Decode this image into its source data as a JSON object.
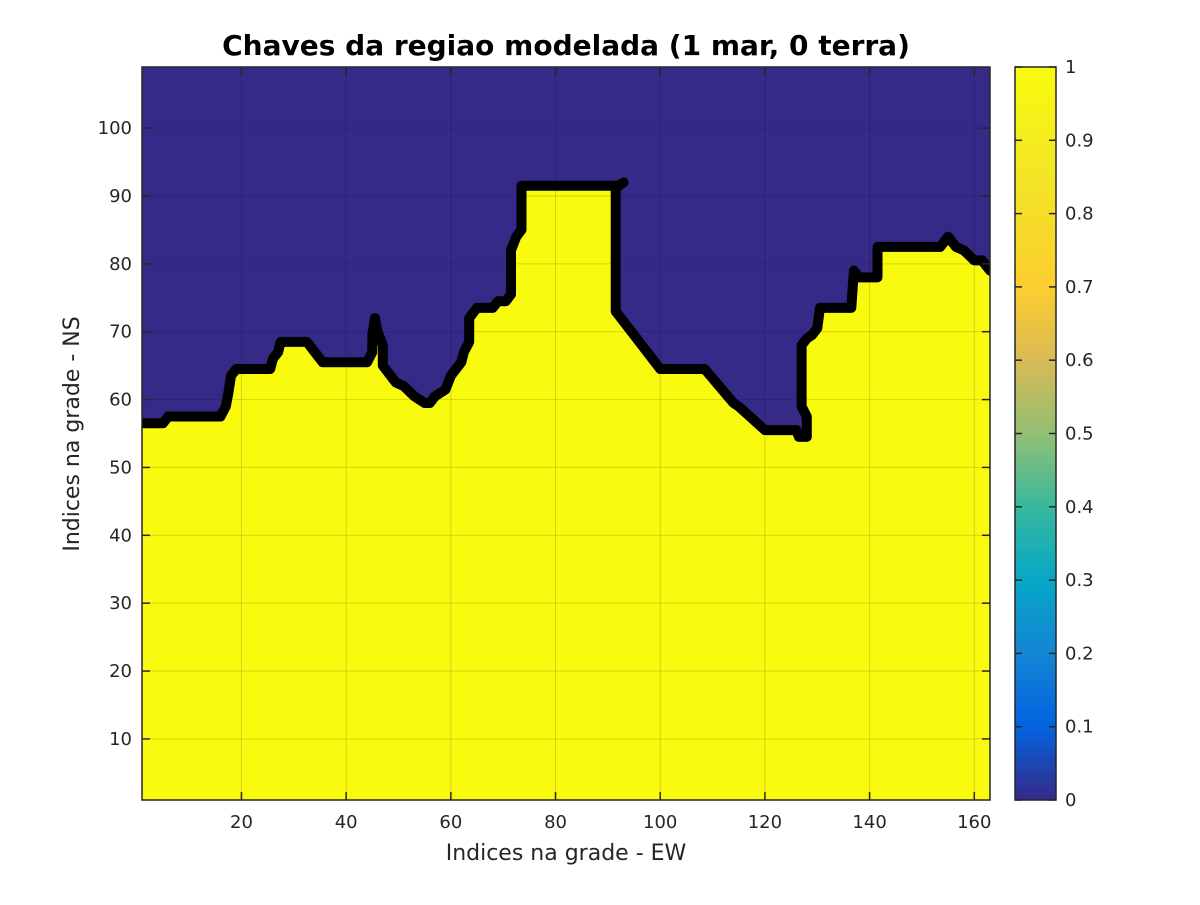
{
  "chart_data": {
    "type": "heatmap",
    "title": "Chaves da regiao modelada (1 mar, 0 terra)",
    "xlabel": "Indices na grade - EW",
    "ylabel": "Indices na grade - NS",
    "xlim": [
      1,
      163
    ],
    "ylim": [
      1,
      109
    ],
    "xticks": [
      20,
      40,
      60,
      80,
      100,
      120,
      140,
      160
    ],
    "yticks": [
      10,
      20,
      30,
      40,
      50,
      60,
      70,
      80,
      90,
      100
    ],
    "grid": true,
    "values": {
      "below_boundary": 1,
      "above_boundary": 0
    },
    "colors": {
      "low": "#352A87",
      "high": "#F9FB0E",
      "boundary": "#000000"
    },
    "colormap": "parula",
    "colorbar": {
      "range": [
        0,
        1
      ],
      "ticks": [
        0,
        0.1,
        0.2,
        0.3,
        0.4,
        0.5,
        0.6,
        0.7,
        0.8,
        0.9,
        1
      ],
      "tick_labels": [
        "0",
        "0.1",
        "0.2",
        "0.3",
        "0.4",
        "0.5",
        "0.6",
        "0.7",
        "0.8",
        "0.9",
        "1"
      ]
    },
    "boundary": [
      [
        1,
        56.5
      ],
      [
        5,
        56.5
      ],
      [
        6,
        57.5
      ],
      [
        16,
        57.5
      ],
      [
        17,
        59
      ],
      [
        17.5,
        61
      ],
      [
        18,
        63.5
      ],
      [
        19,
        64.5
      ],
      [
        25.5,
        64.5
      ],
      [
        26,
        66
      ],
      [
        27,
        67
      ],
      [
        27.5,
        68.5
      ],
      [
        32.5,
        68.5
      ],
      [
        35.5,
        65.5
      ],
      [
        44,
        65.5
      ],
      [
        45,
        67
      ],
      [
        45,
        69.5
      ],
      [
        45.5,
        72
      ],
      [
        46,
        70
      ],
      [
        47,
        68
      ],
      [
        47,
        65
      ],
      [
        48,
        64
      ],
      [
        49.5,
        62.5
      ],
      [
        51,
        62
      ],
      [
        53,
        60.5
      ],
      [
        55,
        59.5
      ],
      [
        56,
        59.5
      ],
      [
        57,
        60.5
      ],
      [
        59,
        61.5
      ],
      [
        60,
        63.5
      ],
      [
        62,
        65.5
      ],
      [
        62.5,
        67
      ],
      [
        63.5,
        68.5
      ],
      [
        63.5,
        72
      ],
      [
        65,
        73.5
      ],
      [
        68,
        73.5
      ],
      [
        69,
        74.5
      ],
      [
        70.5,
        74.5
      ],
      [
        71.5,
        75.5
      ],
      [
        71.5,
        82
      ],
      [
        72.5,
        84
      ],
      [
        73.5,
        85
      ],
      [
        73.5,
        91.5
      ],
      [
        92,
        91.5
      ],
      [
        93,
        92
      ],
      [
        92,
        91.5
      ],
      [
        91.5,
        91
      ],
      [
        91.5,
        73
      ],
      [
        100,
        64.5
      ],
      [
        108.5,
        64.5
      ],
      [
        114,
        59.5
      ],
      [
        115,
        59
      ],
      [
        120,
        55.5
      ],
      [
        126,
        55.5
      ],
      [
        126.5,
        54.5
      ],
      [
        128,
        54.5
      ],
      [
        128,
        57.5
      ],
      [
        127,
        59
      ],
      [
        127,
        68
      ],
      [
        128,
        69
      ],
      [
        129,
        69.5
      ],
      [
        130,
        70.5
      ],
      [
        130.5,
        73.5
      ],
      [
        136.5,
        73.5
      ],
      [
        137,
        79
      ],
      [
        138,
        78
      ],
      [
        140,
        78
      ],
      [
        141.5,
        78
      ],
      [
        141.5,
        82.5
      ],
      [
        153.5,
        82.5
      ],
      [
        155,
        84
      ],
      [
        156.5,
        82.5
      ],
      [
        158,
        82
      ],
      [
        160,
        80.5
      ],
      [
        161.5,
        80.5
      ],
      [
        163,
        79
      ]
    ]
  }
}
